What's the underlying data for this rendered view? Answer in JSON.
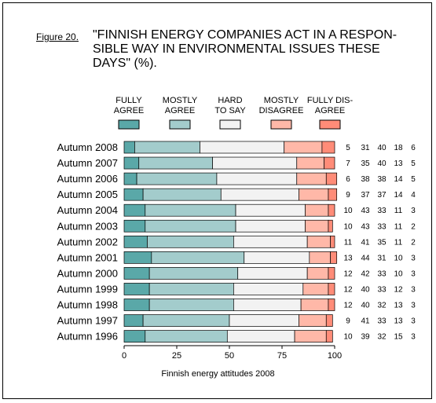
{
  "figure_label": "Figure 20.",
  "title": "\"FINNISH ENERGY COMPANIES ACT IN A RESPON-\nSIBLE WAY IN ENVIRONMENTAL ISSUES THESE\nDAYS\" (%).",
  "footer": "Finnish energy attitudes 2008",
  "chart_data": {
    "type": "bar",
    "stacked": true,
    "orientation": "horizontal",
    "categories": [
      "Autumn 2008",
      "Autumn 2007",
      "Autumn 2006",
      "Autumn 2005",
      "Autumn 2004",
      "Autumn 2003",
      "Autumn 2002",
      "Autumn 2001",
      "Autumn 2000",
      "Autumn 1999",
      "Autumn 1998",
      "Autumn 1997",
      "Autumn 1996"
    ],
    "series": [
      {
        "name": "FULLY AGREE",
        "label_lines": [
          "FULLY",
          "AGREE"
        ],
        "color": "#5aa8a8",
        "values": [
          5,
          7,
          6,
          9,
          10,
          10,
          11,
          13,
          12,
          12,
          12,
          9,
          10
        ]
      },
      {
        "name": "MOSTLY AGREE",
        "label_lines": [
          "MOSTLY",
          "AGREE"
        ],
        "color": "#a3cccc",
        "values": [
          31,
          35,
          38,
          37,
          43,
          43,
          41,
          44,
          42,
          40,
          40,
          41,
          39
        ]
      },
      {
        "name": "HARD TO SAY",
        "label_lines": [
          "HARD",
          "TO SAY"
        ],
        "color": "#f2f2f2",
        "values": [
          40,
          40,
          38,
          37,
          33,
          33,
          35,
          31,
          33,
          33,
          32,
          33,
          32
        ]
      },
      {
        "name": "MOSTLY DISAGREE",
        "label_lines": [
          "MOSTLY",
          "DISAGREE"
        ],
        "color": "#ffb8a8",
        "values": [
          18,
          13,
          14,
          14,
          11,
          11,
          11,
          10,
          10,
          12,
          13,
          13,
          15
        ]
      },
      {
        "name": "FULLY DIS-AGREE",
        "label_lines": [
          "FULLY DIS-",
          "AGREE"
        ],
        "color": "#ff8c78",
        "values": [
          6,
          5,
          5,
          4,
          3,
          2,
          2,
          3,
          3,
          3,
          3,
          3,
          3
        ]
      }
    ],
    "xlim": [
      0,
      100
    ],
    "xticks": [
      0,
      25,
      50,
      75,
      100
    ],
    "legend_position": "top",
    "grid": false
  }
}
